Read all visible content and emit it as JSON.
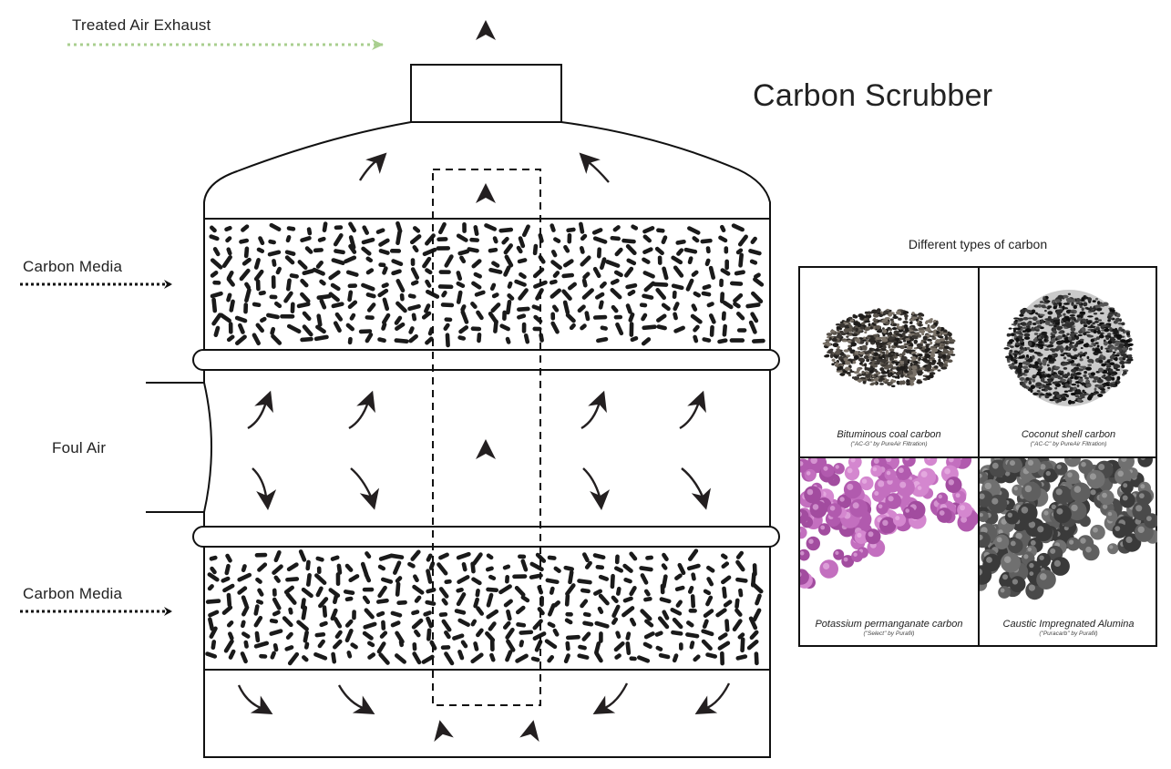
{
  "diagram": {
    "title": "Carbon Scrubber",
    "labels": {
      "exhaust": "Treated Air Exhaust",
      "media_top": "Carbon Media",
      "foul_air": "Foul Air",
      "media_bottom": "Carbon Media"
    },
    "colors": {
      "outline": "#111111",
      "arrow": "#231f20",
      "exhaust_arrow": "#a9cf8f"
    }
  },
  "carbon_panel": {
    "heading": "Different types of carbon",
    "types": [
      {
        "name": "Bituminous coal carbon",
        "subtitle": "(\"AC-G\" by PureAir Filtration)",
        "image": "bituminous-coal-granules"
      },
      {
        "name": "Coconut shell carbon",
        "subtitle": "(\"AC-C\" by PureAir Filtration)",
        "image": "coconut-shell-granules"
      },
      {
        "name": "Potassium permanganate carbon",
        "subtitle": "(\"Select\" by Purafil)",
        "image": "purple-pellets"
      },
      {
        "name": "Caustic Impregnated Alumina",
        "subtitle": "(\"Puracarb\" by Purafil)",
        "image": "grey-pellets"
      }
    ]
  }
}
